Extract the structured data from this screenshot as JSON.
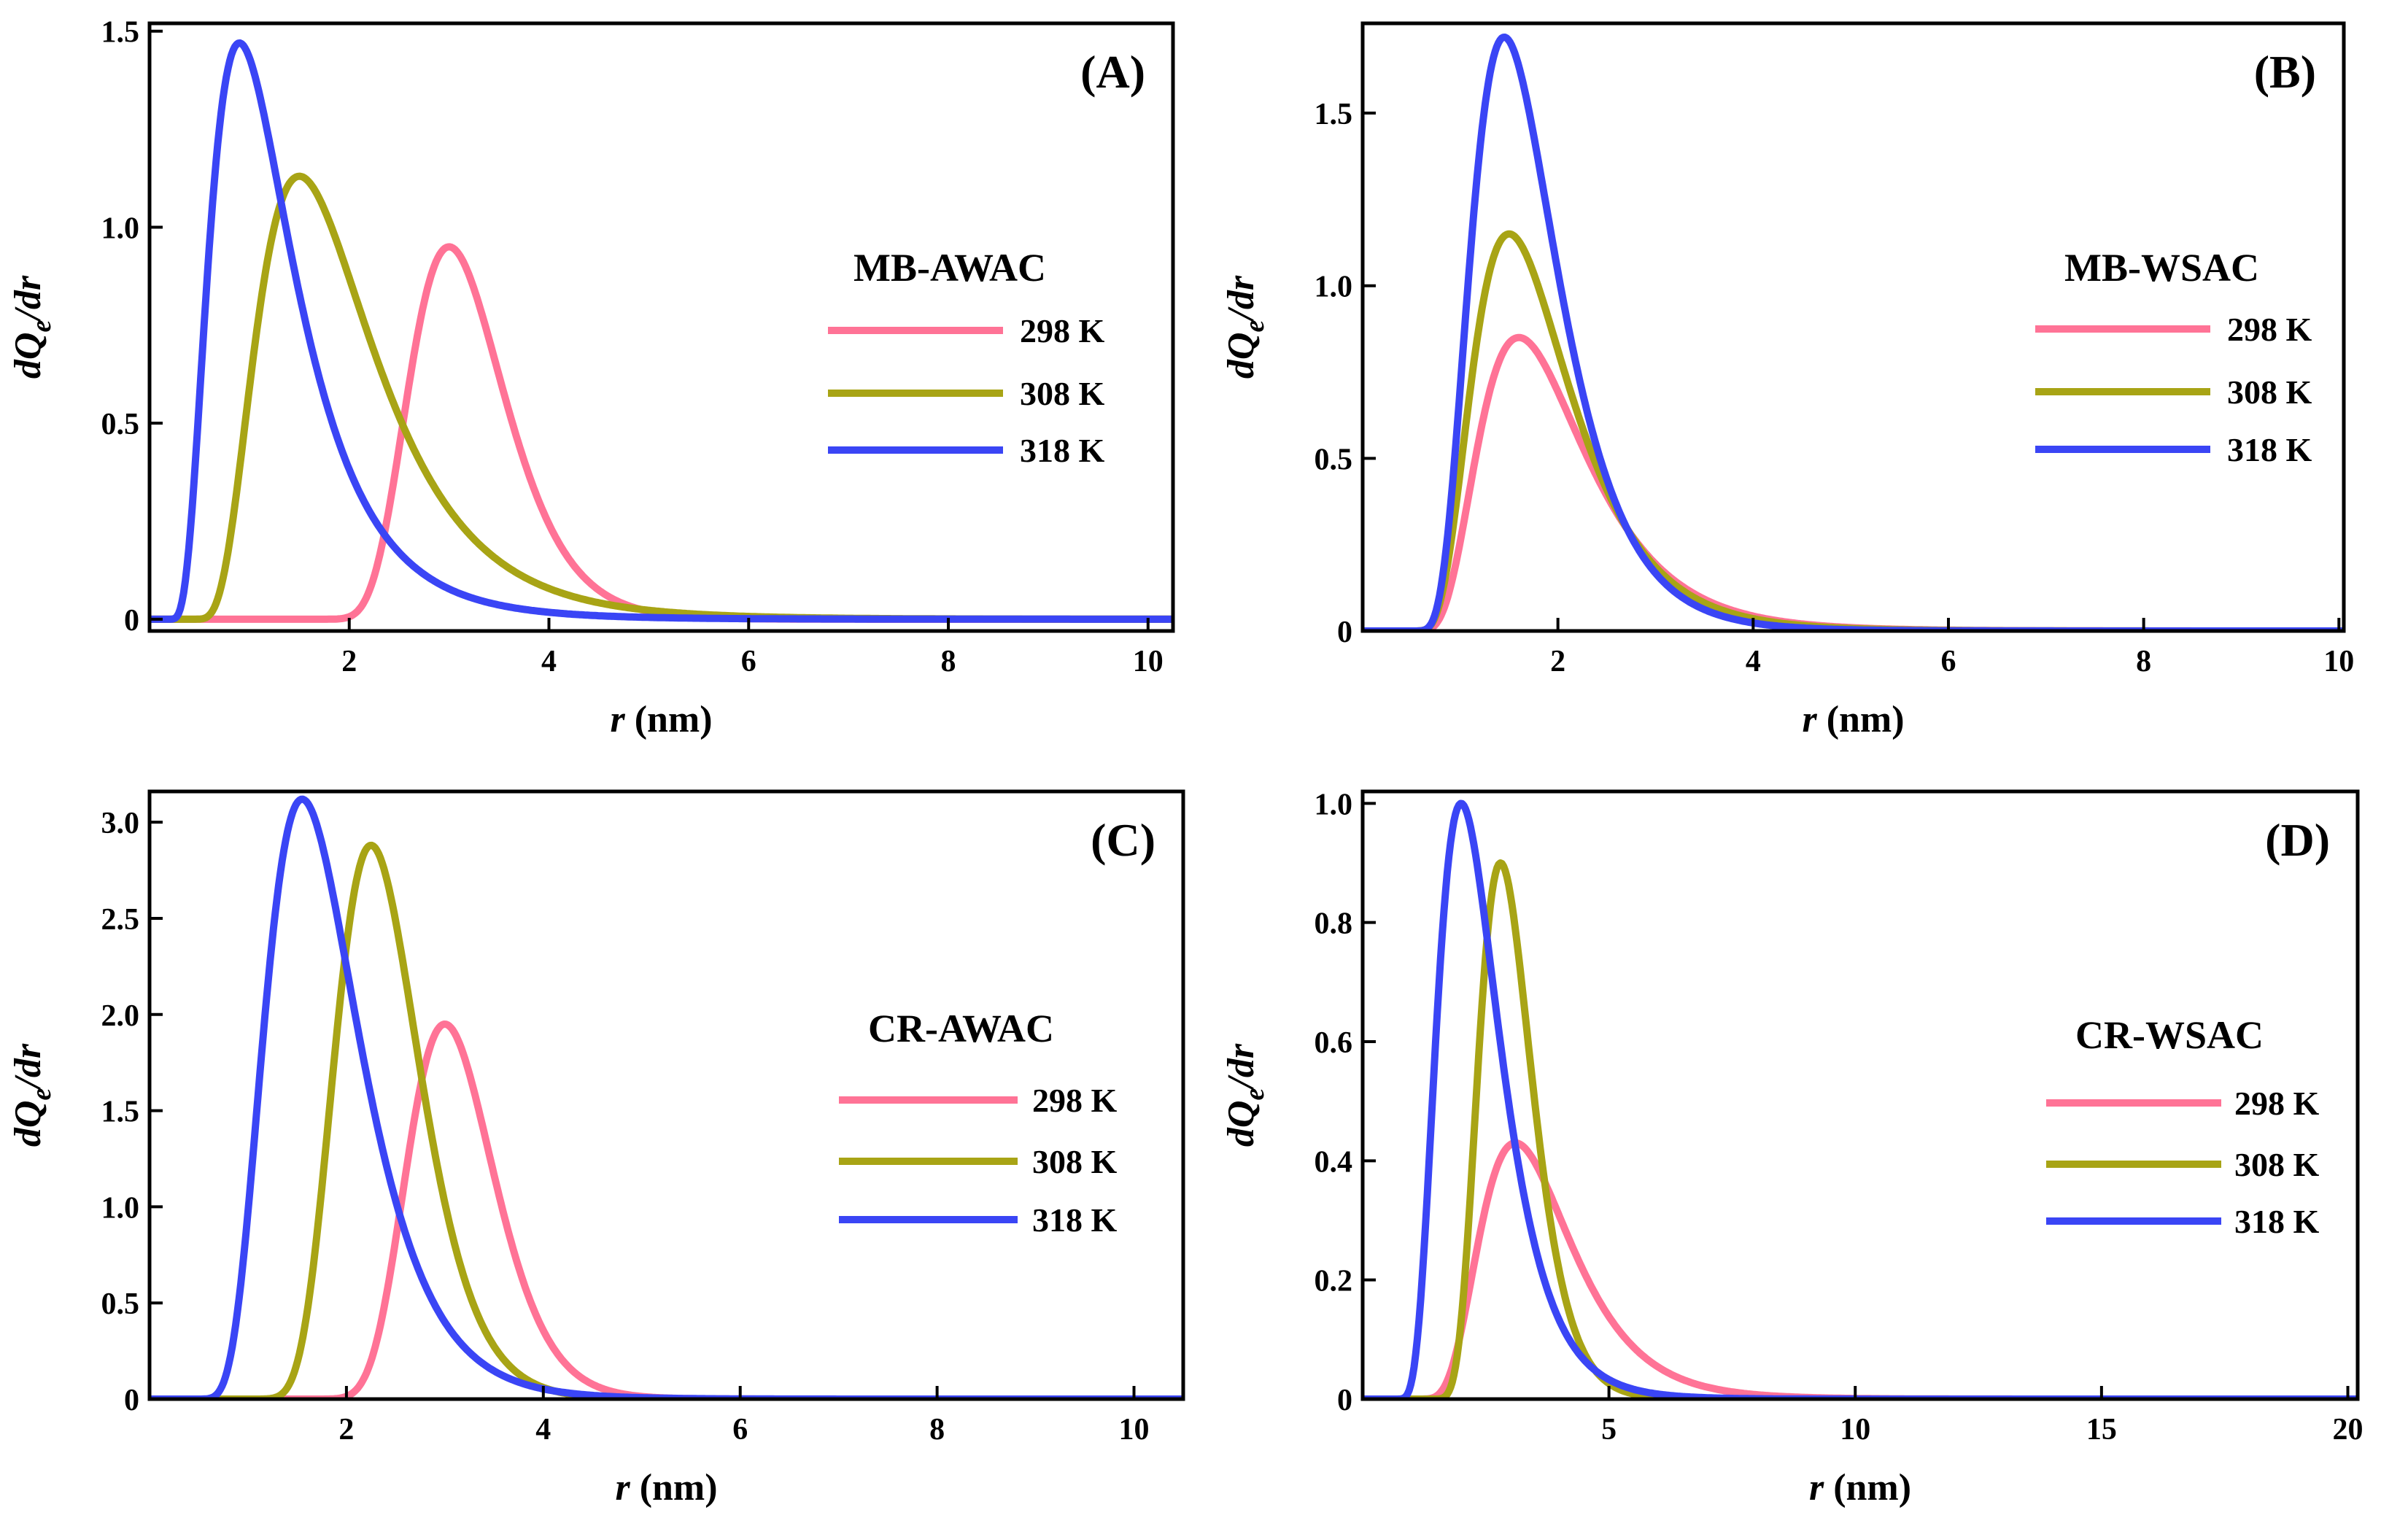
{
  "chart_data": [
    {
      "type": "line",
      "panel_label": "(A)",
      "legend_title": "MB-AWAC",
      "xlabel": {
        "var": "r",
        "unit": " (nm)"
      },
      "ylabel": {
        "d": "d",
        "Q": "Q",
        "sub": "e",
        "rest": "/",
        "dr": "dr"
      },
      "xlim": [
        0,
        10.25
      ],
      "ylim": [
        -0.03,
        1.52
      ],
      "xticks": [
        2,
        4,
        6,
        8,
        10
      ],
      "xtick_labels": [
        "2",
        "4",
        "6",
        "8",
        "10"
      ],
      "yticks": [
        0,
        0.5,
        1.0,
        1.5
      ],
      "ytick_labels": [
        "0",
        "0.5",
        "1.0",
        "1.5"
      ],
      "series": [
        {
          "name": "298 K",
          "color": "#ff7396",
          "peak_x": 3.0,
          "peak_y": 0.95,
          "sigma": 0.28,
          "x0": 1.3
        },
        {
          "name": "308 K",
          "color": "#a8a415",
          "peak_x": 1.5,
          "peak_y": 1.13,
          "sigma": 0.5,
          "x0": 0.35
        },
        {
          "name": "318 K",
          "color": "#3a45f5",
          "peak_x": 0.9,
          "peak_y": 1.47,
          "sigma": 0.55,
          "x0": 0.15
        }
      ]
    },
    {
      "type": "line",
      "panel_label": "(B)",
      "legend_title": "MB-WSAC",
      "xlabel": {
        "var": "r",
        "unit": " (nm)"
      },
      "ylabel": {
        "d": "d",
        "Q": "Q",
        "sub": "e",
        "rest": "/",
        "dr": "dr"
      },
      "xlim": [
        0,
        10.05
      ],
      "ylim": [
        0,
        1.76
      ],
      "xticks": [
        2,
        4,
        6,
        8,
        10
      ],
      "xtick_labels": [
        "2",
        "4",
        "6",
        "8",
        "10"
      ],
      "yticks": [
        0,
        0.5,
        1.0,
        1.5
      ],
      "ytick_labels": [
        "0",
        "0.5",
        "1.0",
        "1.5"
      ],
      "series": [
        {
          "name": "298 K",
          "color": "#ff7396",
          "peak_x": 1.6,
          "peak_y": 0.85,
          "sigma": 0.45,
          "x0": 0.4
        },
        {
          "name": "308 K",
          "color": "#a8a415",
          "peak_x": 1.5,
          "peak_y": 1.15,
          "sigma": 0.45,
          "x0": 0.4
        },
        {
          "name": "318 K",
          "color": "#3a45f5",
          "peak_x": 1.45,
          "peak_y": 1.72,
          "sigma": 0.42,
          "x0": 0.4
        }
      ]
    },
    {
      "type": "line",
      "panel_label": "(C)",
      "legend_title": "CR-AWAC",
      "xlabel": {
        "var": "r",
        "unit": " (nm)"
      },
      "ylabel": {
        "d": "d",
        "Q": "Q",
        "sub": "e",
        "rest": "/",
        "dr": "dr"
      },
      "xlim": [
        0,
        10.5
      ],
      "ylim": [
        0,
        3.16
      ],
      "xticks": [
        2,
        4,
        6,
        8,
        10
      ],
      "xtick_labels": [
        "2",
        "4",
        "6",
        "8",
        "10"
      ],
      "yticks": [
        0,
        0.5,
        1.0,
        1.5,
        2.0,
        2.5,
        3.0
      ],
      "ytick_labels": [
        "0",
        "0.5",
        "1.0",
        "1.5",
        "2.0",
        "2.5",
        "3.0"
      ],
      "series": [
        {
          "name": "298 K",
          "color": "#ff7396",
          "peak_x": 3.0,
          "peak_y": 1.95,
          "sigma": 0.22,
          "x0": 1.0
        },
        {
          "name": "308 K",
          "color": "#a8a415",
          "peak_x": 2.25,
          "peak_y": 2.88,
          "sigma": 0.26,
          "x0": 0.6
        },
        {
          "name": "318 K",
          "color": "#3a45f5",
          "peak_x": 1.55,
          "peak_y": 3.12,
          "sigma": 0.38,
          "x0": 0.3
        }
      ]
    },
    {
      "type": "line",
      "panel_label": "(D)",
      "legend_title": "CR-WSAC",
      "xlabel": {
        "var": "r",
        "unit": " (nm)"
      },
      "ylabel": {
        "d": "d",
        "Q": "Q",
        "sub": "e",
        "rest": "/",
        "dr": "dr"
      },
      "xlim": [
        0,
        20.2
      ],
      "ylim": [
        0,
        1.02
      ],
      "xticks": [
        5,
        10,
        15,
        20
      ],
      "xtick_labels": [
        "5",
        "10",
        "15",
        "20"
      ],
      "yticks": [
        0,
        0.2,
        0.4,
        0.6,
        0.8,
        1.0
      ],
      "ytick_labels": [
        "0",
        "0.2",
        "0.4",
        "0.6",
        "0.8",
        "1.0"
      ],
      "series": [
        {
          "name": "298 K",
          "color": "#ff7396",
          "peak_x": 3.1,
          "peak_y": 0.43,
          "sigma": 0.4,
          "x0": 0.8
        },
        {
          "name": "308 K",
          "color": "#a8a415",
          "peak_x": 2.8,
          "peak_y": 0.9,
          "sigma": 0.3,
          "x0": 1.0
        },
        {
          "name": "318 K",
          "color": "#3a45f5",
          "peak_x": 2.0,
          "peak_y": 1.0,
          "sigma": 0.42,
          "x0": 0.5
        }
      ]
    }
  ]
}
